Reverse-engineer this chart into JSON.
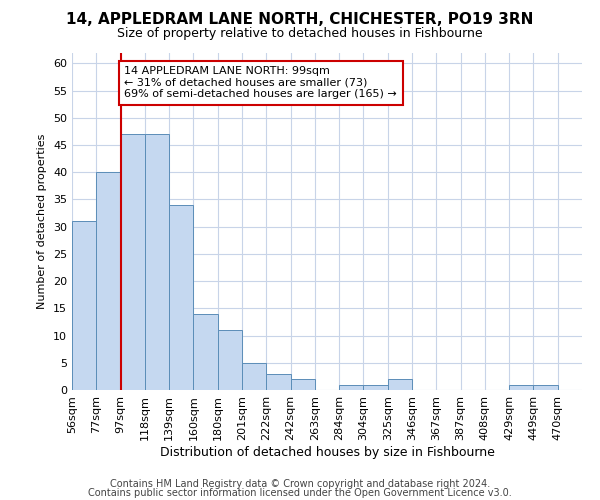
{
  "title1": "14, APPLEDRAM LANE NORTH, CHICHESTER, PO19 3RN",
  "title2": "Size of property relative to detached houses in Fishbourne",
  "xlabel": "Distribution of detached houses by size in Fishbourne",
  "ylabel": "Number of detached properties",
  "categories": [
    "56sqm",
    "77sqm",
    "97sqm",
    "118sqm",
    "139sqm",
    "160sqm",
    "180sqm",
    "201sqm",
    "222sqm",
    "242sqm",
    "263sqm",
    "284sqm",
    "304sqm",
    "325sqm",
    "346sqm",
    "367sqm",
    "387sqm",
    "408sqm",
    "429sqm",
    "449sqm",
    "470sqm"
  ],
  "values": [
    31,
    40,
    47,
    47,
    34,
    14,
    11,
    5,
    3,
    2,
    0,
    1,
    1,
    2,
    0,
    0,
    0,
    0,
    1,
    1,
    0
  ],
  "bar_color": "#c5d8f0",
  "bar_edge_color": "#5b8db8",
  "property_line_index": 2,
  "property_line_color": "#cc0000",
  "annotation_text": "14 APPLEDRAM LANE NORTH: 99sqm\n← 31% of detached houses are smaller (73)\n69% of semi-detached houses are larger (165) →",
  "annotation_box_color": "#ffffff",
  "annotation_box_edge": "#cc0000",
  "ylim": [
    0,
    62
  ],
  "yticks": [
    0,
    5,
    10,
    15,
    20,
    25,
    30,
    35,
    40,
    45,
    50,
    55,
    60
  ],
  "footer1": "Contains HM Land Registry data © Crown copyright and database right 2024.",
  "footer2": "Contains public sector information licensed under the Open Government Licence v3.0.",
  "background_color": "#ffffff",
  "grid_color": "#c8d4e8",
  "title1_fontsize": 11,
  "title2_fontsize": 9,
  "xlabel_fontsize": 9,
  "ylabel_fontsize": 8,
  "tick_fontsize": 8,
  "annotation_fontsize": 8,
  "footer_fontsize": 7
}
